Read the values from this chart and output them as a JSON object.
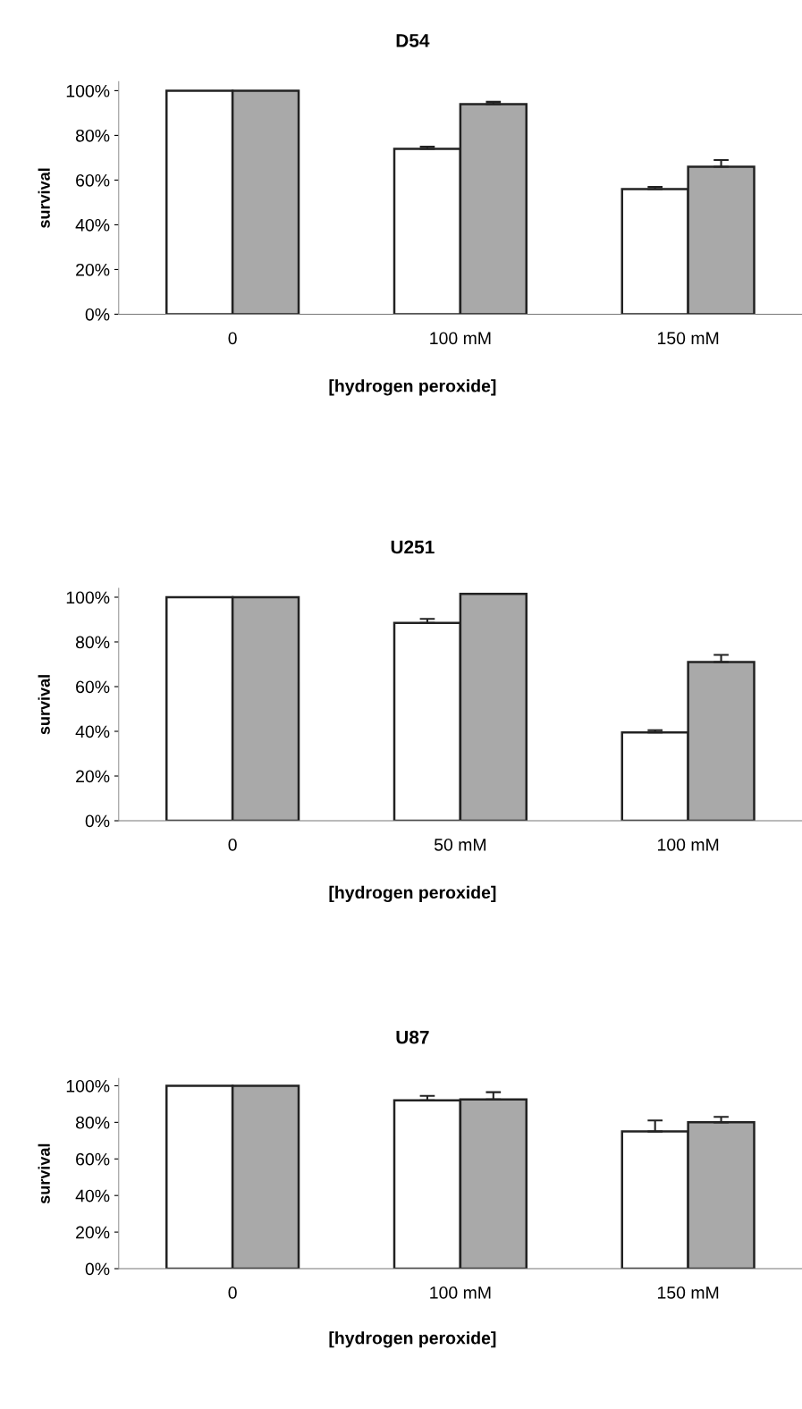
{
  "chart_data": [
    {
      "type": "bar",
      "title": "D54",
      "xlabel": "[hydrogen peroxide]",
      "ylabel": "survival",
      "categories": [
        "0",
        "100 mM",
        "150 mM"
      ],
      "series": [
        {
          "color": "#ffffff",
          "values": [
            100,
            74,
            56
          ],
          "errors": [
            null,
            1,
            1
          ]
        },
        {
          "color": "#a9a9a9",
          "values": [
            100,
            94,
            66
          ],
          "errors": [
            null,
            1,
            3
          ]
        }
      ],
      "ylim": [
        0,
        104
      ],
      "yticks": [
        {
          "value": 0,
          "label": "0%"
        },
        {
          "value": 20,
          "label": "20%"
        },
        {
          "value": 40,
          "label": "40%"
        },
        {
          "value": 60,
          "label": "60%"
        },
        {
          "value": 80,
          "label": "80%"
        },
        {
          "value": 100,
          "label": "100%"
        }
      ],
      "grid": false
    },
    {
      "type": "bar",
      "title": "U251",
      "xlabel": "[hydrogen peroxide]",
      "ylabel": "survival",
      "categories": [
        "0",
        "50 mM",
        "100 mM"
      ],
      "series": [
        {
          "color": "#ffffff",
          "values": [
            100,
            88.5,
            39.5
          ],
          "errors": [
            null,
            1.8,
            1
          ]
        },
        {
          "color": "#a9a9a9",
          "values": [
            100,
            101.5,
            71
          ],
          "errors": [
            null,
            null,
            3.2
          ]
        }
      ],
      "ylim": [
        0,
        104
      ],
      "yticks": [
        {
          "value": 0,
          "label": "0%"
        },
        {
          "value": 20,
          "label": "20%"
        },
        {
          "value": 40,
          "label": "40%"
        },
        {
          "value": 60,
          "label": "60%"
        },
        {
          "value": 80,
          "label": "80%"
        },
        {
          "value": 100,
          "label": "100%"
        }
      ],
      "grid": false
    },
    {
      "type": "bar",
      "title": "U87",
      "xlabel": "[hydrogen peroxide]",
      "ylabel": "survival",
      "categories": [
        "0",
        "100 mM",
        "150 mM"
      ],
      "series": [
        {
          "color": "#ffffff",
          "values": [
            100,
            92,
            75
          ],
          "errors": [
            null,
            2.5,
            6
          ]
        },
        {
          "color": "#a9a9a9",
          "values": [
            100,
            92.5,
            80
          ],
          "errors": [
            null,
            4,
            3
          ]
        }
      ],
      "ylim": [
        0,
        104
      ],
      "yticks": [
        {
          "value": 0,
          "label": "0%"
        },
        {
          "value": 20,
          "label": "20%"
        },
        {
          "value": 40,
          "label": "40%"
        },
        {
          "value": 60,
          "label": "60%"
        },
        {
          "value": 80,
          "label": "80%"
        },
        {
          "value": 100,
          "label": "100%"
        }
      ],
      "grid": false
    }
  ]
}
